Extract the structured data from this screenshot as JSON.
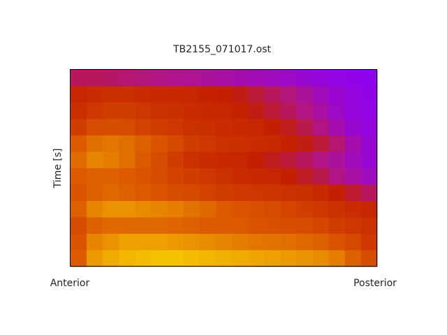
{
  "chart_data": {
    "type": "heatmap",
    "title": "TB2155_071017.ost",
    "y_label": "Time [s]",
    "x_end_labels": [
      "Anterior",
      "Posterior"
    ],
    "zlim": [
      0,
      1
    ],
    "colorscale": [
      [
        0,
        "#8a00ff"
      ],
      [
        0.25,
        "#b0148c"
      ],
      [
        0.4,
        "#c42000"
      ],
      [
        0.6,
        "#dc5a00"
      ],
      [
        0.8,
        "#eea000"
      ],
      [
        1,
        "#f8d800"
      ]
    ],
    "z": [
      [
        0.3,
        0.3,
        0.29,
        0.28,
        0.27,
        0.26,
        0.25,
        0.24,
        0.22,
        0.2,
        0.18,
        0.16,
        0.14,
        0.12,
        0.1,
        0.08,
        0.06,
        0.05,
        0.04
      ],
      [
        0.42,
        0.44,
        0.45,
        0.45,
        0.44,
        0.43,
        0.43,
        0.42,
        0.41,
        0.4,
        0.38,
        0.34,
        0.3,
        0.27,
        0.22,
        0.15,
        0.1,
        0.07,
        0.05
      ],
      [
        0.45,
        0.48,
        0.5,
        0.5,
        0.48,
        0.46,
        0.45,
        0.44,
        0.43,
        0.42,
        0.41,
        0.38,
        0.34,
        0.3,
        0.26,
        0.2,
        0.12,
        0.08,
        0.06
      ],
      [
        0.5,
        0.55,
        0.56,
        0.55,
        0.52,
        0.5,
        0.48,
        0.46,
        0.45,
        0.44,
        0.43,
        0.42,
        0.4,
        0.37,
        0.32,
        0.26,
        0.18,
        0.1,
        0.07
      ],
      [
        0.6,
        0.66,
        0.68,
        0.66,
        0.62,
        0.58,
        0.54,
        0.5,
        0.48,
        0.46,
        0.45,
        0.44,
        0.43,
        0.41,
        0.38,
        0.34,
        0.28,
        0.18,
        0.1
      ],
      [
        0.65,
        0.72,
        0.7,
        0.66,
        0.6,
        0.55,
        0.5,
        0.46,
        0.44,
        0.43,
        0.42,
        0.4,
        0.37,
        0.34,
        0.3,
        0.26,
        0.22,
        0.15,
        0.1
      ],
      [
        0.6,
        0.62,
        0.62,
        0.6,
        0.58,
        0.55,
        0.52,
        0.5,
        0.48,
        0.46,
        0.44,
        0.43,
        0.42,
        0.4,
        0.36,
        0.32,
        0.26,
        0.2,
        0.14
      ],
      [
        0.58,
        0.62,
        0.64,
        0.62,
        0.6,
        0.58,
        0.56,
        0.54,
        0.52,
        0.5,
        0.49,
        0.48,
        0.47,
        0.46,
        0.45,
        0.43,
        0.4,
        0.35,
        0.3
      ],
      [
        0.62,
        0.72,
        0.76,
        0.76,
        0.74,
        0.72,
        0.7,
        0.67,
        0.64,
        0.6,
        0.58,
        0.57,
        0.55,
        0.53,
        0.5,
        0.48,
        0.46,
        0.44,
        0.42
      ],
      [
        0.55,
        0.62,
        0.64,
        0.64,
        0.64,
        0.64,
        0.63,
        0.62,
        0.6,
        0.6,
        0.6,
        0.58,
        0.57,
        0.56,
        0.55,
        0.53,
        0.5,
        0.48,
        0.46
      ],
      [
        0.58,
        0.72,
        0.76,
        0.8,
        0.8,
        0.8,
        0.78,
        0.76,
        0.74,
        0.72,
        0.7,
        0.68,
        0.67,
        0.66,
        0.64,
        0.62,
        0.58,
        0.54,
        0.48
      ],
      [
        0.6,
        0.78,
        0.84,
        0.88,
        0.9,
        0.92,
        0.92,
        0.9,
        0.88,
        0.86,
        0.84,
        0.82,
        0.8,
        0.78,
        0.76,
        0.74,
        0.7,
        0.62,
        0.55
      ]
    ]
  }
}
